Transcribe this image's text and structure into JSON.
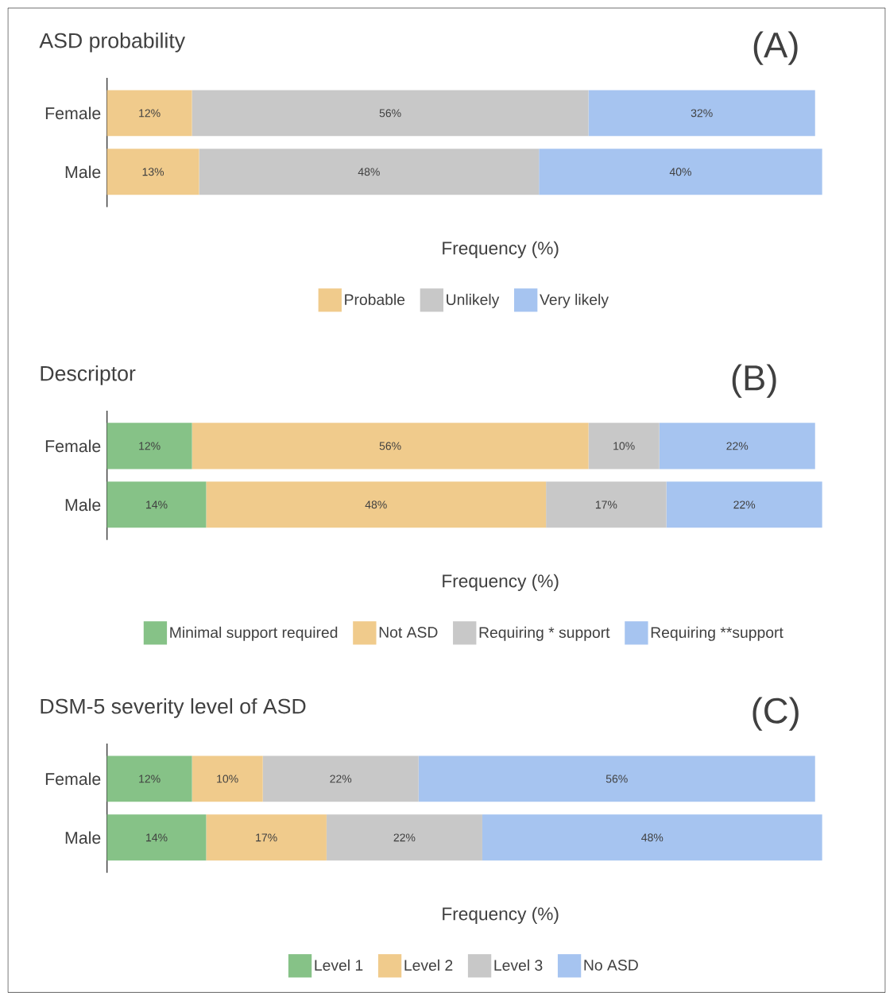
{
  "chart_data": [
    {
      "type": "bar",
      "orientation": "horizontal",
      "stacked": true,
      "title": "ASD probability",
      "xlabel": "Frequency (%)",
      "annotations": [
        "(A)"
      ],
      "legend": "bottom",
      "categories": [
        "Female",
        "Male"
      ],
      "series": [
        {
          "name": "Probable",
          "color": "#f0cb8c",
          "values": [
            12,
            13
          ],
          "value_labels": [
            "12%",
            "13%"
          ]
        },
        {
          "name": "Unlikely",
          "color": "#c8c8c8",
          "values": [
            56,
            48
          ],
          "value_labels": [
            "56%",
            "48%"
          ]
        },
        {
          "name": "Very likely",
          "color": "#a6c4f0",
          "values": [
            32,
            40
          ],
          "value_labels": [
            "32%",
            "40%"
          ]
        }
      ]
    },
    {
      "type": "bar",
      "orientation": "horizontal",
      "stacked": true,
      "title": "Descriptor",
      "xlabel": "Frequency (%)",
      "annotations": [
        "(B)"
      ],
      "legend": "bottom",
      "categories": [
        "Female",
        "Male"
      ],
      "series": [
        {
          "name": "Minimal support required",
          "color": "#86c287",
          "values": [
            12,
            14
          ],
          "value_labels": [
            "12%",
            "14%"
          ]
        },
        {
          "name": "Not ASD",
          "color": "#f0cb8c",
          "values": [
            56,
            48
          ],
          "value_labels": [
            "56%",
            "48%"
          ]
        },
        {
          "name": "Requiring * support",
          "color": "#c8c8c8",
          "values": [
            10,
            17
          ],
          "value_labels": [
            "10%",
            "17%"
          ]
        },
        {
          "name": "Requiring **support",
          "color": "#a6c4f0",
          "values": [
            22,
            22
          ],
          "value_labels": [
            "22%",
            "22%"
          ]
        }
      ]
    },
    {
      "type": "bar",
      "orientation": "horizontal",
      "stacked": true,
      "title": "DSM-5 severity level of ASD",
      "xlabel": "Frequency (%)",
      "annotations": [
        "(C)"
      ],
      "legend": "bottom",
      "categories": [
        "Female",
        "Male"
      ],
      "series": [
        {
          "name": "Level 1",
          "color": "#86c287",
          "values": [
            12,
            14
          ],
          "value_labels": [
            "12%",
            "14%"
          ]
        },
        {
          "name": "Level 2",
          "color": "#f0cb8c",
          "values": [
            10,
            17
          ],
          "value_labels": [
            "10%",
            "17%"
          ]
        },
        {
          "name": "Level 3",
          "color": "#c8c8c8",
          "values": [
            22,
            22
          ],
          "value_labels": [
            "22%",
            "22%"
          ]
        },
        {
          "name": "No ASD",
          "color": "#a6c4f0",
          "values": [
            56,
            48
          ],
          "value_labels": [
            "56%",
            "48%"
          ]
        }
      ]
    }
  ]
}
